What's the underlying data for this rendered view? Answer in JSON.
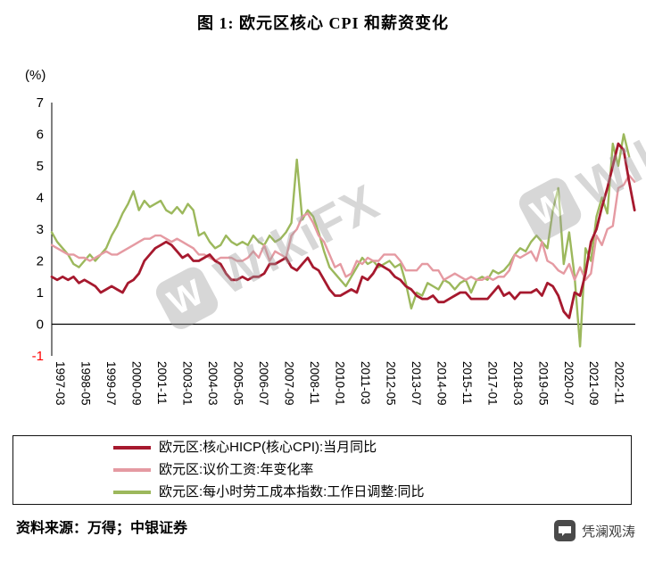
{
  "title": "图 1: 欧元区核心 CPI 和薪资变化",
  "percent_label": "(%)",
  "source_note": "资料来源：万得；中银证券",
  "brand": {
    "text": "凭澜观涛",
    "icon": "wechat-chat-bubble"
  },
  "watermark": {
    "text": "WikiFX",
    "logo_letter": "W"
  },
  "chart_data": {
    "type": "line",
    "title": "图 1: 欧元区核心 CPI 和薪资变化",
    "ylabel": "(%)",
    "ylim": [
      -1,
      7
    ],
    "yticks": [
      7,
      6,
      5,
      4,
      3,
      2,
      1,
      0,
      -1
    ],
    "negative_tick_color": "#ff0000",
    "grid": false,
    "legend_position": "bottom",
    "x_range": [
      1997.167,
      2023.95
    ],
    "xtick_labels": [
      "1997-03",
      "1998-05",
      "1999-07",
      "2000-09",
      "2001-11",
      "2003-01",
      "2004-03",
      "2005-05",
      "2006-07",
      "2007-09",
      "2008-11",
      "2010-01",
      "2011-03",
      "2012-05",
      "2013-07",
      "2014-09",
      "2015-11",
      "2017-01",
      "2018-03",
      "2019-05",
      "2020-07",
      "2021-09",
      "2022-11"
    ],
    "series": [
      {
        "name": "欧元区:核心HICP(核心CPI):当月同比",
        "color": "#a6192e",
        "start": "1997-03",
        "step_months": 3,
        "values": [
          1.5,
          1.4,
          1.5,
          1.4,
          1.5,
          1.3,
          1.4,
          1.3,
          1.2,
          1.0,
          1.1,
          1.2,
          1.1,
          1.0,
          1.3,
          1.4,
          1.6,
          2.0,
          2.2,
          2.4,
          2.5,
          2.6,
          2.5,
          2.3,
          2.1,
          2.2,
          2.0,
          2.0,
          2.1,
          2.2,
          2.0,
          1.9,
          1.6,
          1.4,
          1.4,
          1.5,
          1.4,
          1.5,
          1.5,
          1.6,
          1.9,
          1.9,
          2.0,
          2.1,
          1.8,
          1.7,
          1.9,
          2.1,
          1.8,
          1.7,
          1.4,
          1.1,
          0.9,
          0.9,
          1.0,
          1.1,
          1.0,
          1.5,
          1.4,
          1.6,
          1.9,
          1.8,
          1.7,
          1.5,
          1.4,
          1.2,
          1.1,
          0.9,
          0.8,
          0.8,
          0.9,
          0.7,
          0.7,
          0.8,
          0.9,
          1.0,
          1.0,
          0.8,
          0.8,
          0.8,
          0.8,
          1.0,
          1.2,
          0.9,
          1.0,
          0.8,
          1.0,
          1.0,
          1.0,
          1.1,
          0.9,
          1.3,
          1.2,
          0.9,
          0.4,
          0.2,
          1.0,
          0.9,
          1.6,
          2.6,
          3.0,
          3.7,
          4.3,
          5.0,
          5.7,
          5.5,
          4.5,
          3.6
        ]
      },
      {
        "name": "欧元区:议价工资:年变化率",
        "color": "#e59aa2",
        "start": "1997-03",
        "step_months": 3,
        "values": [
          2.5,
          2.4,
          2.3,
          2.2,
          2.2,
          2.1,
          2.1,
          2.0,
          2.1,
          2.2,
          2.3,
          2.2,
          2.2,
          2.3,
          2.4,
          2.5,
          2.6,
          2.7,
          2.7,
          2.8,
          2.8,
          2.7,
          2.6,
          2.7,
          2.6,
          2.5,
          2.4,
          2.2,
          2.2,
          2.1,
          2.0,
          2.1,
          2.1,
          2.1,
          2.0,
          2.0,
          2.1,
          2.3,
          2.1,
          2.5,
          2.0,
          2.3,
          2.2,
          2.1,
          2.8,
          3.0,
          3.4,
          3.5,
          3.2,
          2.8,
          2.6,
          2.2,
          1.8,
          1.9,
          1.5,
          1.6,
          2.0,
          1.9,
          2.1,
          2.0,
          2.0,
          2.2,
          2.2,
          2.2,
          2.0,
          1.7,
          1.7,
          1.7,
          1.9,
          1.9,
          1.7,
          1.7,
          1.4,
          1.5,
          1.6,
          1.5,
          1.4,
          1.5,
          1.4,
          1.4,
          1.5,
          1.4,
          1.5,
          1.5,
          1.7,
          2.2,
          2.1,
          2.2,
          2.3,
          2.0,
          2.6,
          2.0,
          1.9,
          1.7,
          1.6,
          1.9,
          1.4,
          1.8,
          1.4,
          1.6,
          2.8,
          2.5,
          3.0,
          3.1,
          4.3,
          4.4,
          4.7,
          4.5
        ]
      },
      {
        "name": "欧元区:每小时劳工成本指数:工作日调整:同比",
        "color": "#9cb85c",
        "start": "1997-03",
        "step_months": 3,
        "values": [
          2.9,
          2.6,
          2.4,
          2.2,
          1.9,
          1.8,
          2.0,
          2.2,
          2.0,
          2.2,
          2.4,
          2.8,
          3.1,
          3.5,
          3.8,
          4.2,
          3.6,
          3.9,
          3.7,
          3.8,
          3.9,
          3.6,
          3.5,
          3.7,
          3.5,
          3.8,
          3.6,
          2.8,
          2.9,
          2.6,
          2.4,
          2.5,
          2.8,
          2.6,
          2.5,
          2.6,
          2.5,
          2.8,
          2.6,
          2.5,
          2.8,
          2.6,
          2.7,
          2.9,
          3.2,
          5.2,
          3.3,
          3.6,
          3.4,
          2.9,
          2.3,
          1.8,
          1.6,
          1.4,
          1.2,
          1.5,
          1.8,
          2.1,
          1.9,
          2.0,
          1.8,
          1.9,
          2.0,
          1.8,
          1.9,
          1.3,
          0.5,
          1.0,
          0.9,
          1.3,
          1.2,
          1.1,
          1.4,
          1.3,
          1.1,
          1.3,
          1.4,
          1.0,
          1.4,
          1.5,
          1.4,
          1.7,
          1.6,
          1.7,
          1.9,
          2.2,
          2.4,
          2.3,
          2.6,
          2.8,
          2.6,
          2.4,
          3.6,
          4.3,
          1.9,
          2.9,
          1.5,
          -0.7,
          2.4,
          2.0,
          3.4,
          4.0,
          3.5,
          5.7,
          5.0,
          6.0,
          5.3
        ]
      }
    ]
  }
}
